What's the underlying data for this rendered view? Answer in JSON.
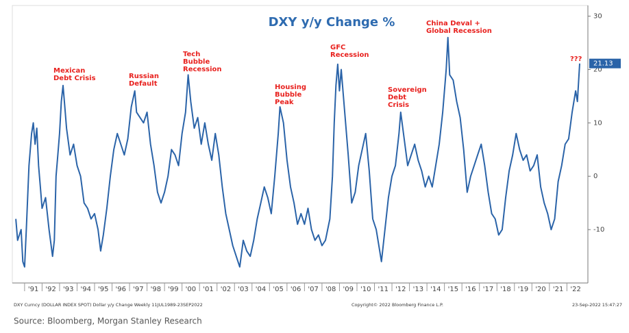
{
  "chart_data": {
    "type": "line",
    "title": "DXY y/y Change %",
    "x": [
      1990.5,
      1990.6,
      1990.8,
      1990.9,
      1991.0,
      1991.1,
      1991.25,
      1991.4,
      1991.5,
      1991.6,
      1991.7,
      1991.8,
      1991.9,
      1992.0,
      1992.2,
      1992.4,
      1992.6,
      1992.7,
      1992.8,
      1992.9,
      1993.0,
      1993.1,
      1993.2,
      1993.3,
      1993.4,
      1993.6,
      1993.8,
      1994.0,
      1994.2,
      1994.4,
      1994.6,
      1994.8,
      1995.0,
      1995.2,
      1995.35,
      1995.5,
      1995.7,
      1995.9,
      1996.1,
      1996.3,
      1996.5,
      1996.7,
      1996.9,
      1997.1,
      1997.3,
      1997.4,
      1997.6,
      1997.8,
      1998.0,
      1998.2,
      1998.4,
      1998.6,
      1998.8,
      1999.0,
      1999.2,
      1999.4,
      1999.6,
      1999.8,
      2000.0,
      2000.2,
      2000.35,
      2000.5,
      2000.7,
      2000.9,
      2001.1,
      2001.3,
      2001.5,
      2001.7,
      2001.9,
      2002.1,
      2002.3,
      2002.5,
      2002.7,
      2002.9,
      2003.1,
      2003.3,
      2003.5,
      2003.7,
      2003.9,
      2004.1,
      2004.3,
      2004.5,
      2004.7,
      2004.9,
      2005.1,
      2005.3,
      2005.5,
      2005.6,
      2005.8,
      2006.0,
      2006.2,
      2006.4,
      2006.6,
      2006.8,
      2007.0,
      2007.2,
      2007.4,
      2007.6,
      2007.8,
      2008.0,
      2008.2,
      2008.45,
      2008.6,
      2008.7,
      2008.8,
      2008.9,
      2009.0,
      2009.1,
      2009.3,
      2009.5,
      2009.7,
      2009.9,
      2010.1,
      2010.3,
      2010.5,
      2010.7,
      2010.9,
      2011.1,
      2011.3,
      2011.4,
      2011.6,
      2011.8,
      2012.0,
      2012.2,
      2012.4,
      2012.5,
      2012.7,
      2012.9,
      2013.1,
      2013.3,
      2013.5,
      2013.7,
      2013.9,
      2014.1,
      2014.3,
      2014.5,
      2014.7,
      2014.9,
      2015.1,
      2015.2,
      2015.3,
      2015.5,
      2015.7,
      2015.9,
      2016.1,
      2016.3,
      2016.5,
      2016.7,
      2016.9,
      2017.1,
      2017.3,
      2017.5,
      2017.7,
      2017.9,
      2018.1,
      2018.3,
      2018.5,
      2018.7,
      2018.9,
      2019.1,
      2019.3,
      2019.5,
      2019.7,
      2019.9,
      2020.1,
      2020.3,
      2020.5,
      2020.7,
      2020.9,
      2021.1,
      2021.3,
      2021.5,
      2021.7,
      2021.9,
      2022.1,
      2022.3,
      2022.5,
      2022.6,
      2022.73
    ],
    "series": [
      {
        "name": "DXY y/y Change",
        "color": "#2a63a8",
        "values": [
          -8,
          -12,
          -10,
          -16,
          -17,
          -10,
          2,
          8,
          10,
          6,
          9,
          2,
          -2,
          -6,
          -4,
          -10,
          -15,
          -12,
          0,
          4,
          8,
          14,
          17,
          13,
          9,
          4,
          6,
          2,
          0,
          -5,
          -6,
          -8,
          -7,
          -10,
          -14,
          -11,
          -6,
          0,
          5,
          8,
          6,
          4,
          7,
          13,
          16,
          12,
          11,
          10,
          12,
          6,
          2,
          -3,
          -5,
          -3,
          0,
          5,
          4,
          2,
          8,
          12,
          19,
          14,
          9,
          11,
          6,
          10,
          6,
          3,
          8,
          4,
          -2,
          -7,
          -10,
          -13,
          -15,
          -17,
          -12,
          -14,
          -15,
          -12,
          -8,
          -5,
          -2,
          -4,
          -7,
          0,
          8,
          13,
          10,
          3,
          -2,
          -5,
          -9,
          -7,
          -9,
          -6,
          -10,
          -12,
          -11,
          -13,
          -12,
          -8,
          0,
          10,
          17,
          21,
          16,
          20,
          12,
          4,
          -5,
          -3,
          2,
          5,
          8,
          1,
          -8,
          -10,
          -14,
          -16,
          -10,
          -4,
          0,
          2,
          8,
          12,
          7,
          2,
          4,
          6,
          3,
          1,
          -2,
          0,
          -2,
          2,
          6,
          12,
          20,
          26,
          19,
          18,
          14,
          11,
          5,
          -3,
          0,
          2,
          4,
          6,
          2,
          -3,
          -7,
          -8,
          -11,
          -10,
          -4,
          1,
          4,
          8,
          5,
          3,
          4,
          1,
          2,
          4,
          -2,
          -5,
          -7,
          -10,
          -8,
          -1,
          2,
          6,
          7,
          12,
          16,
          14,
          21.13
        ]
      }
    ],
    "xlim": [
      1990.3,
      2023.2
    ],
    "xticks": [
      {
        "value": 1991.5,
        "label": "'91"
      },
      {
        "value": 1992.5,
        "label": "'92"
      },
      {
        "value": 1993.5,
        "label": "'93"
      },
      {
        "value": 1994.5,
        "label": "'94"
      },
      {
        "value": 1995.5,
        "label": "'95"
      },
      {
        "value": 1996.5,
        "label": "'96"
      },
      {
        "value": 1997.5,
        "label": "'97"
      },
      {
        "value": 1998.5,
        "label": "'98"
      },
      {
        "value": 1999.5,
        "label": "'99"
      },
      {
        "value": 2000.5,
        "label": "'00"
      },
      {
        "value": 2001.5,
        "label": "'01"
      },
      {
        "value": 2002.5,
        "label": "'02"
      },
      {
        "value": 2003.5,
        "label": "'03"
      },
      {
        "value": 2004.5,
        "label": "'04"
      },
      {
        "value": 2005.5,
        "label": "'05"
      },
      {
        "value": 2006.5,
        "label": "'06"
      },
      {
        "value": 2007.5,
        "label": "'07"
      },
      {
        "value": 2008.5,
        "label": "'08"
      },
      {
        "value": 2009.5,
        "label": "'09"
      },
      {
        "value": 2010.5,
        "label": "'10"
      },
      {
        "value": 2011.5,
        "label": "'11"
      },
      {
        "value": 2012.5,
        "label": "'12"
      },
      {
        "value": 2013.5,
        "label": "'13"
      },
      {
        "value": 2014.5,
        "label": "'14"
      },
      {
        "value": 2015.5,
        "label": "'15"
      },
      {
        "value": 2016.5,
        "label": "'16"
      },
      {
        "value": 2017.5,
        "label": "'17"
      },
      {
        "value": 2018.5,
        "label": "'18"
      },
      {
        "value": 2019.5,
        "label": "'19"
      },
      {
        "value": 2020.5,
        "label": "'20"
      },
      {
        "value": 2021.5,
        "label": "'21"
      },
      {
        "value": 2022.5,
        "label": "'22"
      }
    ],
    "ylim": [
      -20,
      32
    ],
    "yticks": [
      -10,
      0,
      10,
      20,
      30
    ],
    "annotations": [
      {
        "lines": [
          "Mexican",
          "Debt Crisis"
        ]
      },
      {
        "lines": [
          "Russian",
          "Default"
        ]
      },
      {
        "lines": [
          "Tech",
          "Bubble",
          "Recession"
        ]
      },
      {
        "lines": [
          "Housing",
          "Bubble",
          "Peak"
        ]
      },
      {
        "lines": [
          "GFC",
          "Recession"
        ]
      },
      {
        "lines": [
          "Sovereign",
          "Debt",
          "Crisis"
        ]
      },
      {
        "lines": [
          "China Deval +",
          "Global Recession"
        ]
      },
      {
        "lines": [
          "???"
        ]
      }
    ],
    "footer_left": "DXY Curncy (DOLLAR INDEX SPOT) Dollar y/y Change  Weekly 11JUL1989-23SEP2022",
    "footer_center": "Copyright© 2022 Bloomberg Finance L.P.",
    "footer_right": "23-Sep-2022 15:47:27",
    "source": "Source: Bloomberg, Morgan Stanley Research"
  }
}
